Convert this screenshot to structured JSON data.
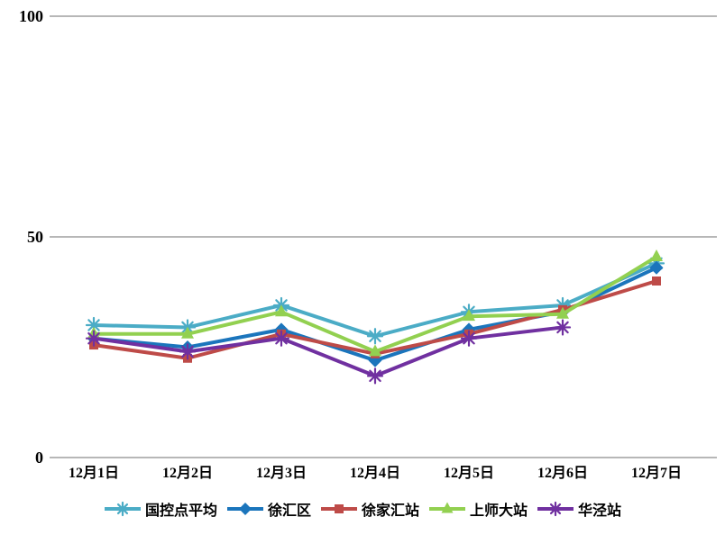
{
  "chart_data": {
    "type": "line",
    "title": "",
    "xlabel": "",
    "ylabel": "",
    "ylim": [
      0,
      100
    ],
    "yticks": [
      0,
      50,
      100
    ],
    "grid": "horizontal",
    "legend_position": "bottom",
    "gridline_color": "#8C8C8C",
    "categories": [
      "12月1日",
      "12月2日",
      "12月3日",
      "12月4日",
      "12月5日",
      "12月6日",
      "12月7日"
    ],
    "series": [
      {
        "name": "国控点平均",
        "color": "#4BACC6",
        "marker": "asterisk",
        "values": [
          30,
          29.5,
          34.5,
          27.5,
          33,
          34.5,
          44
        ]
      },
      {
        "name": "徐汇区",
        "color": "#1B75BC",
        "marker": "diamond",
        "values": [
          27,
          25,
          29,
          22,
          29,
          33,
          43
        ]
      },
      {
        "name": "徐家汇站",
        "color": "#BE4B48",
        "marker": "square",
        "values": [
          25.5,
          22.5,
          28,
          23.5,
          28,
          33.5,
          40
        ]
      },
      {
        "name": "上师大站",
        "color": "#92D050",
        "marker": "triangle",
        "values": [
          28,
          28,
          33,
          24,
          32,
          32.5,
          45.5
        ]
      },
      {
        "name": "华泾站",
        "color": "#7030A0",
        "marker": "asterisk",
        "values": [
          27,
          24,
          27,
          18.5,
          27,
          29.5,
          null
        ]
      }
    ]
  }
}
